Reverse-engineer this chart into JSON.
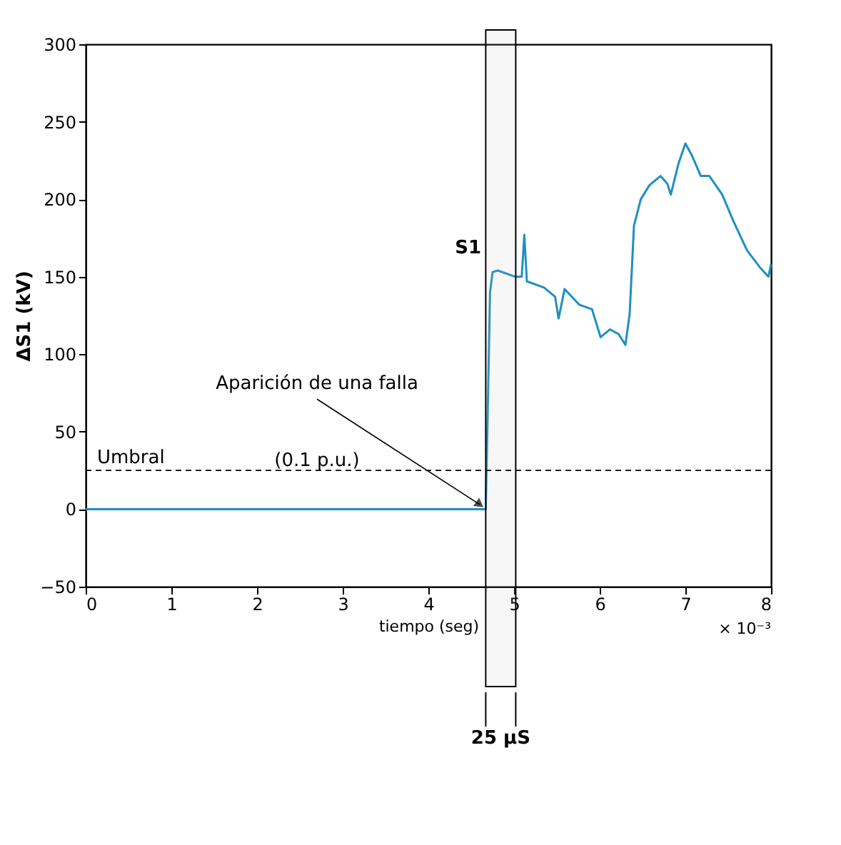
{
  "chart_data": {
    "type": "line",
    "xlabel": "tiempo (seg)",
    "ylabel": "ΔS1 (kV)",
    "xlim": [
      0,
      8
    ],
    "xticks": [
      0,
      1,
      2,
      3,
      4,
      5,
      6,
      7,
      8
    ],
    "ylim": [
      -50,
      300
    ],
    "yticks": [
      -50,
      0,
      50,
      100,
      150,
      200,
      250,
      300
    ],
    "grid": false,
    "series": [
      {
        "color": "#1f8fc0",
        "x": [
          0,
          4.67,
          4.69,
          4.72,
          4.75,
          4.81,
          5.01,
          5.09,
          5.12,
          5.15,
          5.35,
          5.48,
          5.52,
          5.59,
          5.76,
          5.91,
          6.01,
          6.12,
          6.22,
          6.3,
          6.35,
          6.4,
          6.48,
          6.58,
          6.71,
          6.79,
          6.83,
          6.92,
          7.0,
          7.07,
          7.18,
          7.28,
          7.43,
          7.56,
          7.72,
          7.87,
          7.97,
          8.0
        ],
        "values": [
          0,
          0,
          54,
          140,
          153,
          154,
          150,
          150,
          177,
          147,
          143,
          137,
          123,
          142,
          132,
          129,
          111,
          116,
          113,
          106,
          126,
          183,
          200,
          209,
          215,
          210,
          203,
          223,
          236,
          229,
          215,
          215,
          203,
          186,
          167,
          156,
          150,
          158
        ]
      }
    ],
    "ref_lines": [
      {
        "axis": "y",
        "value": 25,
        "label": "Umbral",
        "line_style": "dashed",
        "color": "#000000"
      }
    ],
    "bands": [
      {
        "axis": "x",
        "from": 4.67,
        "to": 5.02,
        "label": "25 µS"
      }
    ],
    "annotations": [
      {
        "text": "S1",
        "x": 4.75,
        "y": 153
      },
      {
        "text": "Aparición de una falla",
        "x": 4.6,
        "y": 3
      },
      {
        "text": "(0.1 p.u.)",
        "x": 2.7,
        "y": 25
      },
      "× 10⁻³"
    ]
  }
}
